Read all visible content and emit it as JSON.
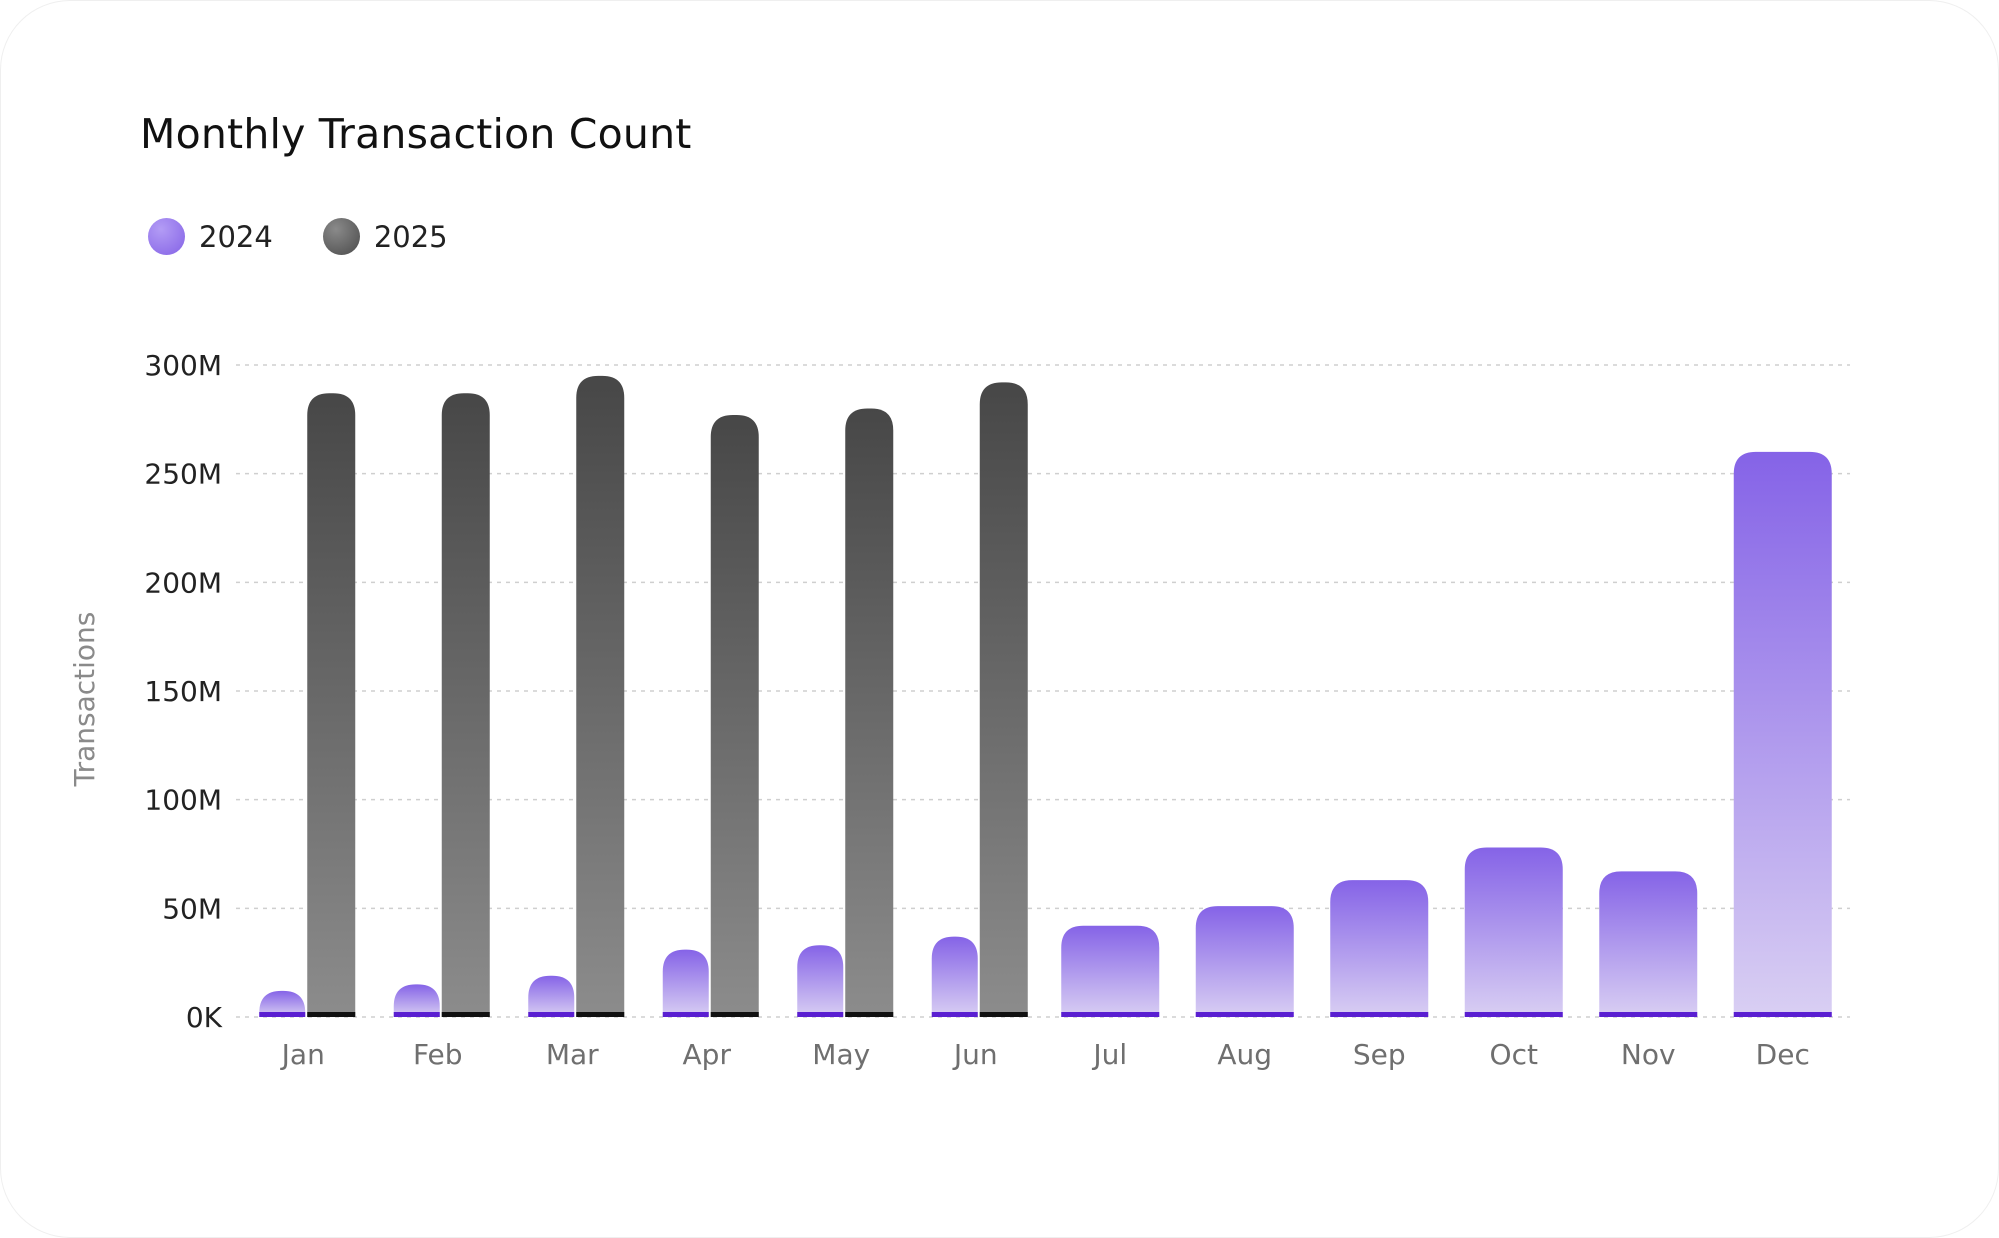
{
  "title": "Monthly Transaction Count",
  "legend": [
    {
      "label": "2024",
      "color": "#8b6ae6"
    },
    {
      "label": "2025",
      "color": "#555555"
    }
  ],
  "chart_data": {
    "type": "bar",
    "title": "Monthly Transaction Count",
    "xlabel": "",
    "ylabel": "Transactions",
    "ylim": [
      0,
      300000000
    ],
    "yticks": [
      0,
      50000000,
      100000000,
      150000000,
      200000000,
      250000000,
      300000000
    ],
    "ytick_labels": [
      "0K",
      "50M",
      "100M",
      "150M",
      "200M",
      "250M",
      "300M"
    ],
    "grid": true,
    "legend_position": "top-left",
    "categories": [
      "Jan",
      "Feb",
      "Mar",
      "Apr",
      "May",
      "Jun",
      "Jul",
      "Aug",
      "Sep",
      "Oct",
      "Nov",
      "Dec"
    ],
    "series": [
      {
        "name": "2024",
        "color": "#8b6ae6",
        "values": [
          12000000,
          15000000,
          19000000,
          31000000,
          33000000,
          37000000,
          42000000,
          51000000,
          63000000,
          78000000,
          67000000,
          260000000
        ]
      },
      {
        "name": "2025",
        "color": "#4f4f4f",
        "values": [
          287000000,
          287000000,
          295000000,
          277000000,
          280000000,
          292000000,
          null,
          null,
          null,
          null,
          null,
          null
        ]
      }
    ]
  }
}
